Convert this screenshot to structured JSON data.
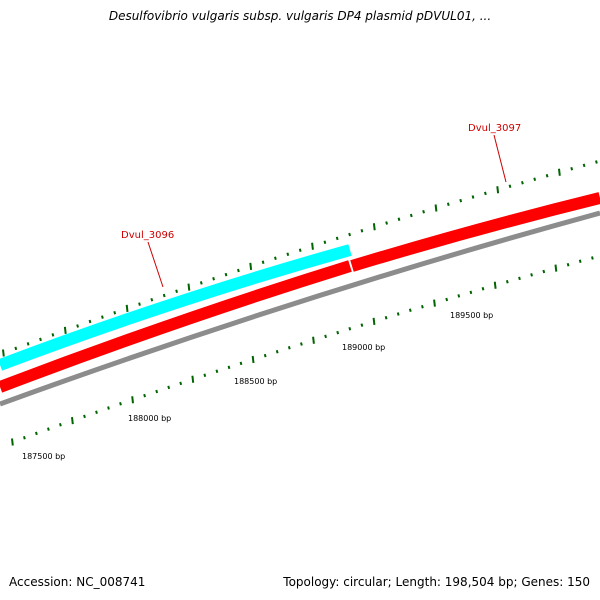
{
  "title": "Desulfovibrio vulgaris subsp. vulgaris DP4 plasmid pDVUL01, ...",
  "footer": {
    "accession": "Accession: NC_008741",
    "summary": "Topology: circular; Length: 198,504 bp; Genes: 150"
  },
  "position_labels": [
    "187500 bp",
    "188000 bp",
    "188500 bp",
    "189000 bp",
    "189500 bp"
  ],
  "genes": [
    {
      "name": "Dvul_3096",
      "strand": "forward",
      "color": "#00ffff"
    },
    {
      "name": "Dvul_3096",
      "strand": "reverse",
      "color": "#ff0000"
    },
    {
      "name": "Dvul_3097",
      "strand": "reverse",
      "color": "#ff0000"
    }
  ],
  "gene_labels": [
    "Dvul_3096",
    "Dvul_3097"
  ],
  "colors": {
    "forward_strand": "#00ffff",
    "reverse_strand": "#ff0000",
    "backbone": "#808080",
    "ticks": "#006400",
    "gene_label": "#cc0000"
  }
}
